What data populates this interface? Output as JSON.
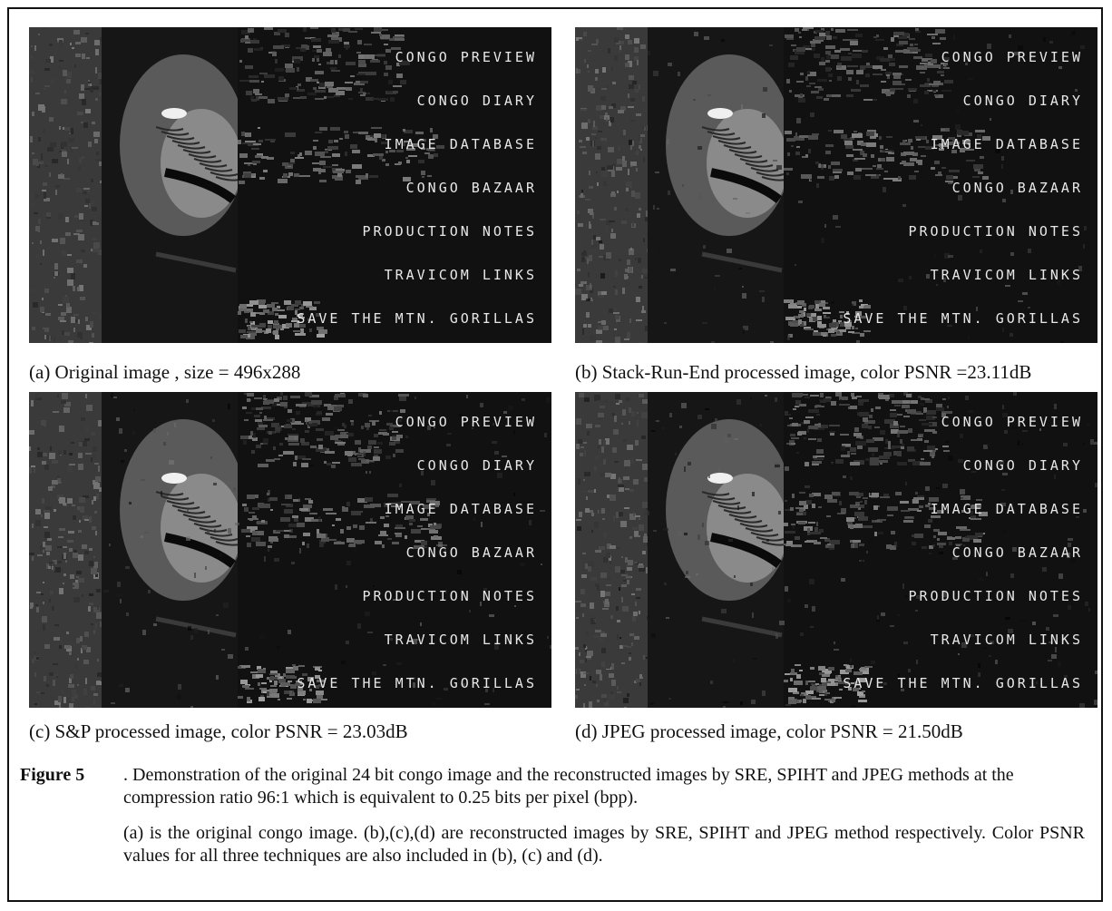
{
  "panels": [
    {
      "id": "a",
      "caption": "(a) Original image , size = 496x288",
      "noise": 0.0
    },
    {
      "id": "b",
      "caption": "(b) Stack-Run-End processed image, color PSNR =23.11dB",
      "noise": 0.4
    },
    {
      "id": "c",
      "caption": "(c) S&P processed image, color PSNR = 23.03dB",
      "noise": 0.5
    },
    {
      "id": "d",
      "caption": "(d) JPEG processed image, color PSNR = 21.50dB",
      "noise": 0.7
    }
  ],
  "menu_items": [
    "CONGO PREVIEW",
    "CONGO DIARY",
    "IMAGE DATABASE",
    "CONGO BAZAAR",
    "PRODUCTION NOTES",
    "TRAVICOM LINKS",
    "SAVE THE MTN. GORILLAS"
  ],
  "figure": {
    "label": "Figure 5",
    "text": ". Demonstration of the original 24 bit congo image and the reconstructed images by SRE, SPIHT and JPEG methods at the compression ratio 96:1 which is equivalent to 0.25 bits per pixel (bpp).",
    "para": "(a) is the original congo image. (b),(c),(d) are reconstructed images by SRE, SPIHT and JPEG method respectively. Color PSNR values for all three techniques are also included in (b), (c) and (d)."
  }
}
